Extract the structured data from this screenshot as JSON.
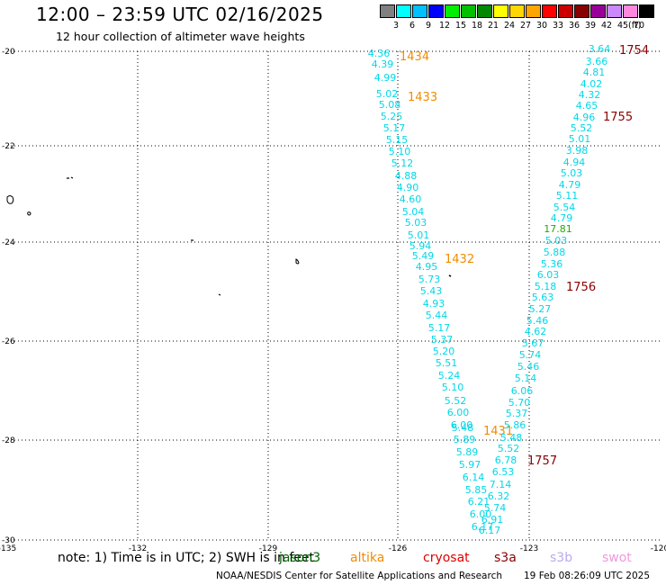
{
  "header": {
    "title": "12:00 – 23:59 UTC 02/16/2025",
    "subtitle": "12 hour collection of altimeter wave heights"
  },
  "color_scale": {
    "unit": "(ft)",
    "bins": [
      {
        "label": "3",
        "color": "#808080"
      },
      {
        "label": "6",
        "color": "#00ffff"
      },
      {
        "label": "9",
        "color": "#00bfff"
      },
      {
        "label": "12",
        "color": "#0000ff"
      },
      {
        "label": "15",
        "color": "#00ee00"
      },
      {
        "label": "18",
        "color": "#00c000"
      },
      {
        "label": "21",
        "color": "#008800"
      },
      {
        "label": "24",
        "color": "#ffff00"
      },
      {
        "label": "27",
        "color": "#ffd700"
      },
      {
        "label": "30",
        "color": "#ffa500"
      },
      {
        "label": "33",
        "color": "#ff0000"
      },
      {
        "label": "36",
        "color": "#cc0000"
      },
      {
        "label": "39",
        "color": "#880000"
      },
      {
        "label": "42",
        "color": "#990099"
      },
      {
        "label": "45",
        "color": "#cc88ff"
      },
      {
        "label": "70",
        "color": "#ff88dd"
      },
      {
        "label": "",
        "color": "#000000"
      }
    ]
  },
  "map": {
    "lon_labels": [
      "-135",
      "-132",
      "-129",
      "-126",
      "-123",
      "-120"
    ],
    "lat_labels": [
      "-20",
      "-22",
      "-24",
      "-26",
      "-28",
      "-30"
    ]
  },
  "tracks": [
    {
      "satellite": "altika",
      "pass_times": [
        {
          "label": "1434"
        },
        {
          "label": "1433"
        },
        {
          "label": "1432"
        },
        {
          "label": "1431"
        }
      ],
      "wave_heights": [
        "4.36",
        "4.39",
        "4.99",
        "5.02",
        "5.08",
        "5.25",
        "5.17",
        "5.15",
        "5.10",
        "5.12",
        "4.88",
        "4.90",
        "4.60",
        "5.04",
        "5.03",
        "5.01",
        "5.94",
        "5.49",
        "4.95",
        "5.73",
        "5.43",
        "4.93",
        "5.44",
        "5.17",
        "5.37",
        "5.20",
        "5.51",
        "5.24",
        "5.10",
        "5.52",
        "6.00",
        "6.00",
        "5.48",
        "5.89",
        "5.89",
        "5.97",
        "6.14",
        "5.85",
        "6.21",
        "6.00",
        "6.17"
      ]
    },
    {
      "satellite": "s3a",
      "pass_times": [
        {
          "label": "1754"
        },
        {
          "label": "1755"
        },
        {
          "label": "1756"
        },
        {
          "label": "1757"
        }
      ],
      "wave_heights": [
        "3.64",
        "3.66",
        "4.81",
        "4.02",
        "4.32",
        "4.65",
        "4.96",
        "5.52",
        "5.01",
        "3.98",
        "4.94",
        "5.03",
        "4.79",
        "5.11",
        "5.54",
        "4.79",
        "17.81",
        "5.03",
        "5.88",
        "5.36",
        "6.03",
        "5.18",
        "5.63",
        "5.27",
        "5.46",
        "4.62",
        "5.67",
        "5.74",
        "5.46",
        "5.14",
        "6.06",
        "5.70",
        "5.37",
        "5.86",
        "5.48",
        "5.52",
        "6.78",
        "6.53",
        "7.14",
        "6.32",
        "5.74",
        "6.91",
        "6.17"
      ]
    }
  ],
  "footer": {
    "note": "note: 1) Time is in UTC; 2) SWH is in feet",
    "satellites": [
      {
        "name": "jason3",
        "color": "#006600"
      },
      {
        "name": "altika",
        "color": "#f08c00"
      },
      {
        "name": "cryosat",
        "color": "#dd0000"
      },
      {
        "name": "s3a",
        "color": "#8a0000"
      },
      {
        "name": "s3b",
        "color": "#bbaaee"
      },
      {
        "name": "swot",
        "color": "#ee99dd"
      }
    ],
    "credit": "NOAA/NESDIS Center for Satellite Applications and Research",
    "timestamp": "19 Feb 08:26:09 UTC 2025"
  }
}
